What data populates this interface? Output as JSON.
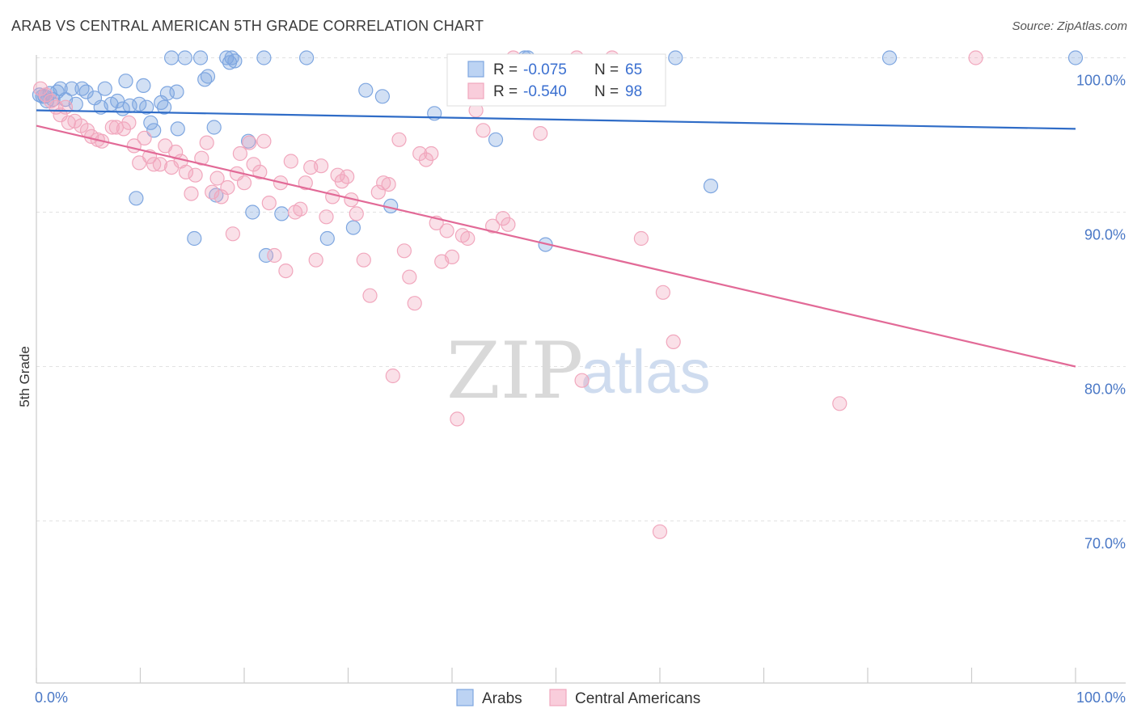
{
  "title": "ARAB VS CENTRAL AMERICAN 5TH GRADE CORRELATION CHART",
  "source": "Source: ZipAtlas.com",
  "watermark": {
    "zip": "ZIP",
    "atlas": "atlas"
  },
  "legend": {
    "r_label": "R =",
    "n_label": "N =",
    "rows": [
      {
        "r": "-0.075",
        "n": "65",
        "color": "#7ea6e0"
      },
      {
        "r": "-0.540",
        "n": "98",
        "color": "#f1a7bd"
      }
    ]
  },
  "bottom_legend": [
    "Arabs",
    "Central Americans"
  ],
  "chart_data": {
    "type": "scatter",
    "xlabel": "",
    "ylabel": "5th Grade",
    "xlim": [
      0,
      100
    ],
    "ylim": [
      59.5,
      100.5
    ],
    "x_tick_labels": [
      "0.0%",
      "100.0%"
    ],
    "y_ticks": [
      70,
      80,
      90,
      100
    ],
    "y_tick_labels": [
      "70.0%",
      "80.0%",
      "90.0%",
      "100.0%"
    ],
    "grid": true,
    "legend_position": "top-center",
    "series": [
      {
        "name": "Arabs",
        "color": "#7ea6e0",
        "line_color": "#2f6cc7",
        "trend": {
          "x0": 0,
          "y0": 96.6,
          "x1": 100,
          "y1": 95.4
        },
        "points": [
          [
            0.3,
            97.6
          ],
          [
            0.8,
            97.5
          ],
          [
            1.0,
            97.2
          ],
          [
            1.3,
            97.7
          ],
          [
            1.6,
            97.3
          ],
          [
            2.0,
            97.8
          ],
          [
            2.3,
            98.0
          ],
          [
            2.8,
            97.3
          ],
          [
            3.4,
            98.0
          ],
          [
            3.8,
            97.0
          ],
          [
            4.4,
            98.0
          ],
          [
            4.8,
            97.8
          ],
          [
            5.6,
            97.4
          ],
          [
            6.2,
            96.8
          ],
          [
            6.6,
            98.0
          ],
          [
            7.2,
            97.0
          ],
          [
            7.8,
            97.2
          ],
          [
            8.3,
            96.7
          ],
          [
            8.6,
            98.5
          ],
          [
            9.0,
            96.9
          ],
          [
            9.6,
            90.9
          ],
          [
            9.9,
            97.0
          ],
          [
            10.3,
            98.2
          ],
          [
            10.6,
            96.8
          ],
          [
            11.0,
            95.8
          ],
          [
            11.3,
            95.3
          ],
          [
            12.0,
            97.1
          ],
          [
            12.3,
            96.8
          ],
          [
            12.6,
            97.7
          ],
          [
            13.0,
            100.0
          ],
          [
            13.5,
            97.8
          ],
          [
            13.6,
            95.4
          ],
          [
            14.3,
            100.0
          ],
          [
            15.2,
            88.3
          ],
          [
            15.8,
            100.0
          ],
          [
            16.2,
            98.6
          ],
          [
            16.5,
            98.8
          ],
          [
            17.1,
            95.5
          ],
          [
            17.3,
            91.1
          ],
          [
            18.3,
            100.0
          ],
          [
            18.6,
            99.7
          ],
          [
            18.8,
            100.0
          ],
          [
            19.1,
            99.8
          ],
          [
            20.4,
            94.6
          ],
          [
            20.8,
            90.0
          ],
          [
            21.9,
            100.0
          ],
          [
            22.1,
            87.2
          ],
          [
            23.6,
            89.9
          ],
          [
            26.0,
            100.0
          ],
          [
            28.0,
            88.3
          ],
          [
            30.5,
            89.0
          ],
          [
            31.7,
            97.9
          ],
          [
            33.3,
            97.5
          ],
          [
            34.1,
            90.4
          ],
          [
            38.3,
            96.4
          ],
          [
            42.4,
            97.4
          ],
          [
            44.2,
            94.7
          ],
          [
            47.0,
            100.0
          ],
          [
            47.3,
            100.0
          ],
          [
            49.0,
            87.9
          ],
          [
            61.5,
            100.0
          ],
          [
            64.9,
            91.7
          ],
          [
            82.1,
            100.0
          ],
          [
            100.0,
            100.0
          ],
          [
            0.6,
            97.5
          ]
        ]
      },
      {
        "name": "Central Americans",
        "color": "#f1a7bd",
        "line_color": "#e26a97",
        "trend": {
          "x0": 0,
          "y0": 95.6,
          "x1": 100,
          "y1": 80.0
        },
        "points": [
          [
            0.4,
            98.0
          ],
          [
            0.9,
            97.6
          ],
          [
            1.4,
            97.2
          ],
          [
            1.9,
            96.8
          ],
          [
            2.3,
            96.3
          ],
          [
            2.8,
            96.8
          ],
          [
            3.1,
            95.8
          ],
          [
            3.7,
            95.9
          ],
          [
            4.3,
            95.6
          ],
          [
            4.9,
            95.3
          ],
          [
            5.3,
            94.9
          ],
          [
            5.9,
            94.7
          ],
          [
            6.3,
            94.6
          ],
          [
            7.3,
            95.5
          ],
          [
            7.7,
            95.5
          ],
          [
            8.4,
            95.4
          ],
          [
            8.9,
            95.8
          ],
          [
            9.4,
            94.3
          ],
          [
            9.9,
            93.2
          ],
          [
            10.4,
            94.8
          ],
          [
            10.9,
            93.6
          ],
          [
            11.3,
            93.1
          ],
          [
            11.9,
            93.1
          ],
          [
            12.4,
            94.3
          ],
          [
            13.0,
            92.9
          ],
          [
            13.4,
            93.9
          ],
          [
            13.9,
            93.3
          ],
          [
            14.4,
            92.6
          ],
          [
            14.9,
            91.2
          ],
          [
            15.3,
            92.4
          ],
          [
            15.9,
            93.5
          ],
          [
            16.4,
            94.5
          ],
          [
            16.9,
            91.3
          ],
          [
            17.4,
            92.2
          ],
          [
            17.8,
            91.0
          ],
          [
            18.4,
            91.6
          ],
          [
            18.9,
            88.6
          ],
          [
            19.3,
            92.5
          ],
          [
            19.6,
            93.8
          ],
          [
            20.0,
            91.9
          ],
          [
            20.5,
            94.5
          ],
          [
            20.9,
            93.1
          ],
          [
            21.5,
            92.6
          ],
          [
            21.9,
            94.6
          ],
          [
            22.4,
            90.6
          ],
          [
            22.9,
            87.2
          ],
          [
            23.5,
            91.9
          ],
          [
            24.0,
            86.2
          ],
          [
            24.5,
            93.3
          ],
          [
            24.9,
            90.0
          ],
          [
            25.4,
            90.2
          ],
          [
            25.9,
            91.9
          ],
          [
            26.4,
            92.9
          ],
          [
            26.9,
            86.9
          ],
          [
            27.4,
            93.0
          ],
          [
            27.9,
            89.7
          ],
          [
            28.5,
            91.0
          ],
          [
            29.0,
            92.4
          ],
          [
            29.4,
            92.0
          ],
          [
            29.9,
            92.3
          ],
          [
            30.3,
            90.8
          ],
          [
            30.8,
            89.9
          ],
          [
            31.5,
            86.9
          ],
          [
            32.1,
            84.6
          ],
          [
            32.9,
            91.3
          ],
          [
            33.4,
            91.9
          ],
          [
            33.9,
            91.8
          ],
          [
            34.3,
            79.4
          ],
          [
            34.9,
            94.7
          ],
          [
            35.4,
            87.5
          ],
          [
            35.9,
            85.8
          ],
          [
            36.4,
            84.1
          ],
          [
            36.9,
            93.8
          ],
          [
            37.5,
            93.4
          ],
          [
            38.0,
            93.8
          ],
          [
            38.5,
            89.3
          ],
          [
            39.0,
            86.8
          ],
          [
            39.5,
            88.8
          ],
          [
            40.0,
            87.1
          ],
          [
            40.5,
            76.6
          ],
          [
            41.0,
            88.5
          ],
          [
            41.5,
            88.3
          ],
          [
            42.3,
            96.6
          ],
          [
            43.0,
            95.3
          ],
          [
            43.9,
            89.1
          ],
          [
            44.9,
            89.6
          ],
          [
            45.4,
            89.2
          ],
          [
            45.9,
            100.0
          ],
          [
            48.5,
            95.1
          ],
          [
            52.0,
            100.0
          ],
          [
            52.5,
            79.1
          ],
          [
            55.4,
            100.0
          ],
          [
            58.2,
            88.3
          ],
          [
            60.0,
            69.3
          ],
          [
            60.3,
            84.8
          ],
          [
            61.3,
            81.6
          ],
          [
            77.3,
            77.6
          ],
          [
            90.4,
            100.0
          ]
        ]
      }
    ]
  }
}
